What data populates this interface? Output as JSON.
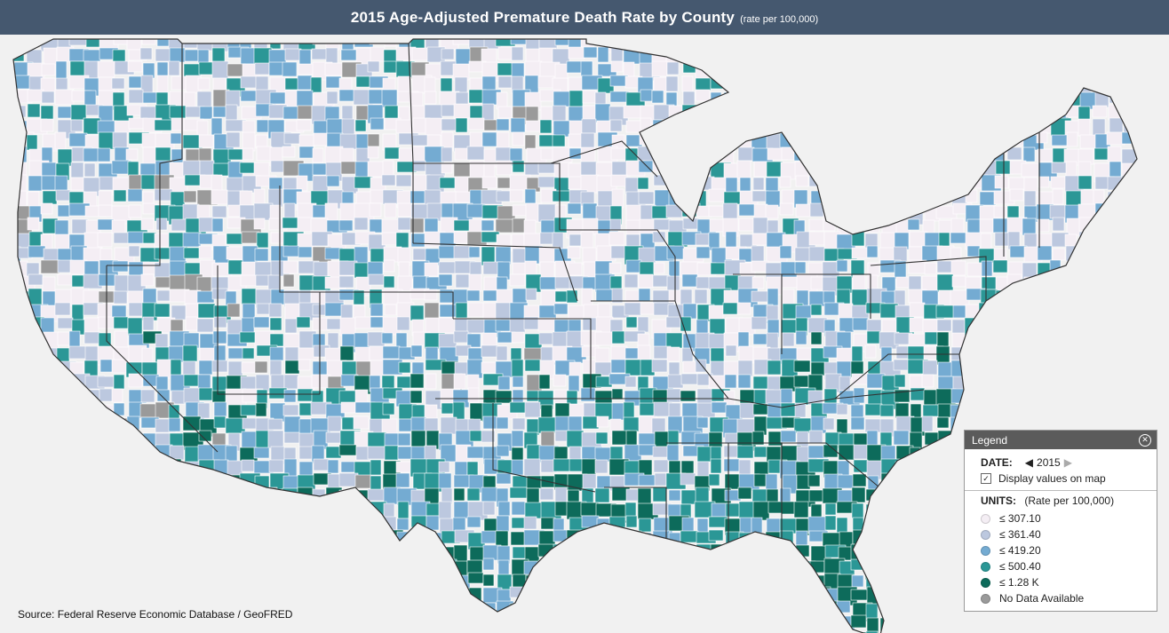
{
  "title": {
    "main": "2015 Age-Adjusted Premature Death Rate by County",
    "sub": "(rate per 100,000)"
  },
  "source": "Source: Federal Reserve Economic Database / GeoFRED",
  "legend": {
    "header": "Legend",
    "date_label": "DATE:",
    "date_value": "2015",
    "display_values_label": "Display values on map",
    "display_values_checked": true,
    "units_label": "UNITS:",
    "units_value": "(Rate per 100,000)",
    "items": [
      {
        "label": "≤ 307.10",
        "color": "#f4eef4"
      },
      {
        "label": "≤ 361.40",
        "color": "#bcc8df"
      },
      {
        "label": "≤ 419.20",
        "color": "#74abd2"
      },
      {
        "label": "≤ 500.40",
        "color": "#2b9796"
      },
      {
        "label": "≤ 1.28 K",
        "color": "#0d6b5b"
      },
      {
        "label": "No Data Available",
        "color": "#9a9a9a"
      }
    ]
  },
  "map": {
    "ocean_color": "#f1f1f1",
    "border_color": "#444444"
  }
}
